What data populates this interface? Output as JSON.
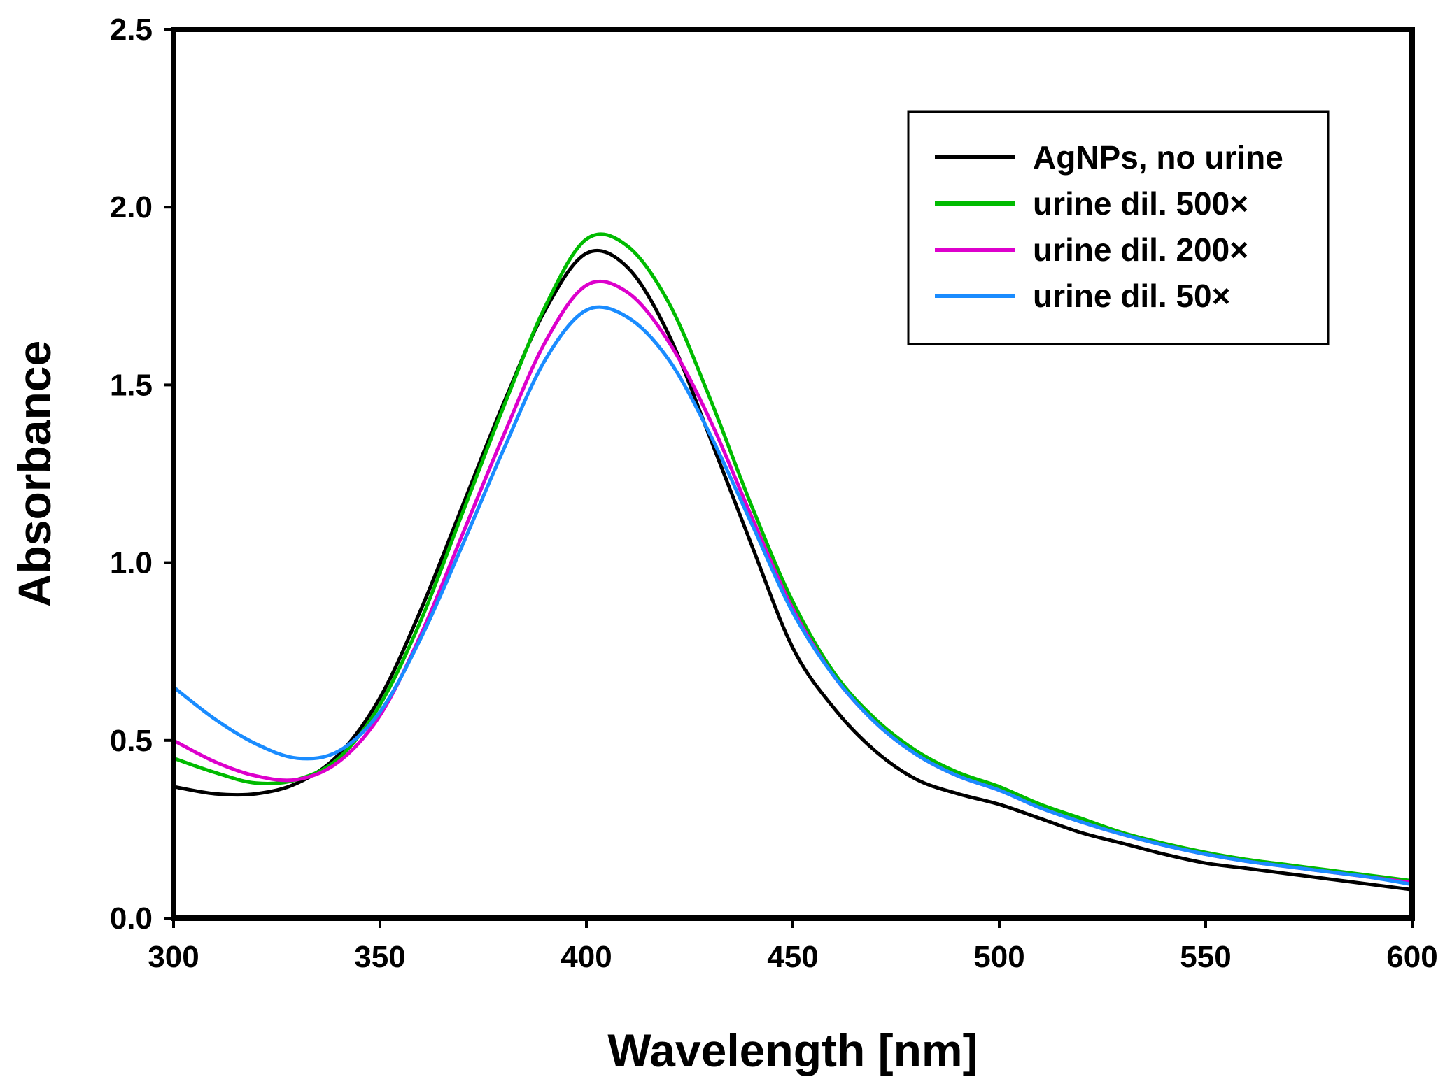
{
  "chart_data": {
    "type": "line",
    "title": "",
    "xlabel": "Wavelength [nm]",
    "ylabel": "Absorbance",
    "xlim": [
      300,
      600
    ],
    "ylim": [
      0,
      2.5
    ],
    "x_ticks": [
      300,
      350,
      400,
      450,
      500,
      550,
      600
    ],
    "x_tick_labels": [
      "300",
      "350",
      "400",
      "450",
      "500",
      "550",
      "600"
    ],
    "y_ticks": [
      0,
      0.5,
      1.0,
      1.5,
      2.0,
      2.5
    ],
    "y_tick_labels": [
      "0.0",
      "0.5",
      "1.0",
      "1.5",
      "2.0",
      "2.5"
    ],
    "grid": false,
    "legend_position": "top-right",
    "x": [
      300,
      310,
      320,
      330,
      340,
      350,
      360,
      370,
      380,
      390,
      400,
      410,
      420,
      430,
      440,
      450,
      460,
      470,
      480,
      490,
      500,
      510,
      520,
      530,
      540,
      550,
      560,
      570,
      580,
      590,
      600
    ],
    "series": [
      {
        "name": "AgNPs, no urine",
        "color": "#000000",
        "values": [
          0.37,
          0.35,
          0.35,
          0.38,
          0.46,
          0.62,
          0.87,
          1.16,
          1.45,
          1.71,
          1.87,
          1.83,
          1.64,
          1.35,
          1.05,
          0.76,
          0.59,
          0.47,
          0.39,
          0.35,
          0.32,
          0.28,
          0.24,
          0.21,
          0.18,
          0.155,
          0.14,
          0.125,
          0.11,
          0.095,
          0.08
        ]
      },
      {
        "name": "urine dil. 500×",
        "color": "#00bb00",
        "values": [
          0.45,
          0.41,
          0.38,
          0.39,
          0.45,
          0.6,
          0.84,
          1.14,
          1.44,
          1.72,
          1.91,
          1.89,
          1.73,
          1.46,
          1.16,
          0.89,
          0.69,
          0.56,
          0.47,
          0.41,
          0.37,
          0.32,
          0.28,
          0.24,
          0.21,
          0.185,
          0.165,
          0.15,
          0.135,
          0.12,
          0.105
        ]
      },
      {
        "name": "urine dil. 200×",
        "color": "#dd00cc",
        "values": [
          0.5,
          0.44,
          0.4,
          0.39,
          0.44,
          0.57,
          0.8,
          1.08,
          1.36,
          1.62,
          1.78,
          1.76,
          1.62,
          1.4,
          1.13,
          0.87,
          0.68,
          0.55,
          0.46,
          0.4,
          0.36,
          0.31,
          0.27,
          0.235,
          0.205,
          0.18,
          0.16,
          0.145,
          0.13,
          0.115,
          0.1
        ]
      },
      {
        "name": "urine dil. 50×",
        "color": "#1a8cff",
        "values": [
          0.65,
          0.56,
          0.49,
          0.45,
          0.47,
          0.58,
          0.79,
          1.05,
          1.32,
          1.57,
          1.71,
          1.69,
          1.57,
          1.36,
          1.11,
          0.86,
          0.68,
          0.55,
          0.46,
          0.4,
          0.36,
          0.31,
          0.27,
          0.235,
          0.205,
          0.18,
          0.16,
          0.145,
          0.13,
          0.115,
          0.095
        ]
      }
    ]
  }
}
